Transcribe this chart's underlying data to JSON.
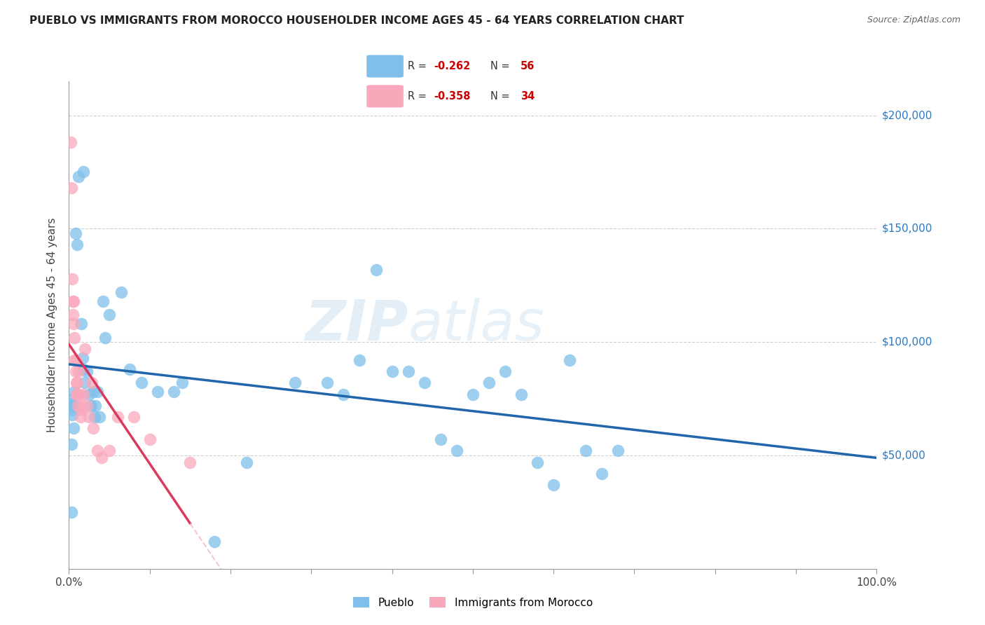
{
  "title": "PUEBLO VS IMMIGRANTS FROM MOROCCO HOUSEHOLDER INCOME AGES 45 - 64 YEARS CORRELATION CHART",
  "source": "Source: ZipAtlas.com",
  "ylabel": "Householder Income Ages 45 - 64 years",
  "ytick_values": [
    50000,
    100000,
    150000,
    200000
  ],
  "ymin": 0,
  "ymax": 215000,
  "xmin": 0.0,
  "xmax": 1.0,
  "legend_blue_r": "-0.262",
  "legend_blue_n": "56",
  "legend_pink_r": "-0.358",
  "legend_pink_n": "34",
  "legend_blue_label": "Pueblo",
  "legend_pink_label": "Immigrants from Morocco",
  "blue_color": "#7fbfea",
  "pink_color": "#f9a8bb",
  "trendline_blue_color": "#2166ac",
  "trendline_pink_color": "#d9395a",
  "trendline_pink_dashed_color": "#f0b8c8",
  "watermark_zip": "ZIP",
  "watermark_atlas": "atlas",
  "blue_points_x": [
    0.003,
    0.018,
    0.003,
    0.003,
    0.004,
    0.005,
    0.004,
    0.006,
    0.006,
    0.007,
    0.008,
    0.01,
    0.012,
    0.015,
    0.017,
    0.018,
    0.02,
    0.022,
    0.025,
    0.027,
    0.03,
    0.032,
    0.033,
    0.035,
    0.038,
    0.042,
    0.045,
    0.05,
    0.065,
    0.075,
    0.09,
    0.11,
    0.13,
    0.14,
    0.18,
    0.22,
    0.28,
    0.32,
    0.34,
    0.36,
    0.38,
    0.4,
    0.42,
    0.44,
    0.46,
    0.48,
    0.5,
    0.52,
    0.54,
    0.56,
    0.58,
    0.6,
    0.62,
    0.64,
    0.66,
    0.68
  ],
  "blue_points_y": [
    25000,
    175000,
    75000,
    55000,
    70000,
    72000,
    68000,
    62000,
    73000,
    78000,
    148000,
    143000,
    173000,
    108000,
    93000,
    88000,
    82000,
    87000,
    77000,
    72000,
    78000,
    67000,
    72000,
    78000,
    67000,
    118000,
    102000,
    112000,
    122000,
    88000,
    82000,
    78000,
    78000,
    82000,
    12000,
    47000,
    82000,
    82000,
    77000,
    92000,
    132000,
    87000,
    87000,
    82000,
    57000,
    52000,
    77000,
    82000,
    87000,
    77000,
    47000,
    37000,
    92000,
    52000,
    42000,
    52000
  ],
  "pink_points_x": [
    0.002,
    0.003,
    0.004,
    0.005,
    0.005,
    0.006,
    0.006,
    0.007,
    0.007,
    0.008,
    0.008,
    0.009,
    0.009,
    0.01,
    0.01,
    0.011,
    0.012,
    0.013,
    0.014,
    0.015,
    0.016,
    0.018,
    0.02,
    0.022,
    0.025,
    0.028,
    0.03,
    0.035,
    0.04,
    0.05,
    0.06,
    0.08,
    0.1,
    0.15
  ],
  "pink_points_y": [
    188000,
    168000,
    128000,
    118000,
    112000,
    118000,
    108000,
    102000,
    92000,
    92000,
    87000,
    82000,
    77000,
    82000,
    77000,
    72000,
    87000,
    77000,
    67000,
    70000,
    72000,
    77000,
    97000,
    72000,
    67000,
    82000,
    62000,
    52000,
    49000,
    52000,
    67000,
    67000,
    57000,
    47000
  ],
  "pink_trend_x_solid_end": 0.15,
  "pink_trend_x_dash_end": 0.55
}
